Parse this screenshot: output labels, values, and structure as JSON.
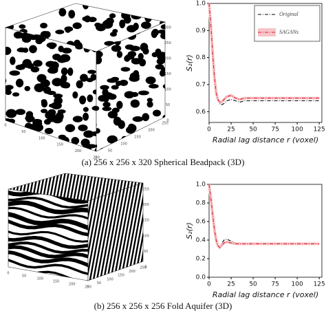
{
  "figures": [
    {
      "caption": "(a) 256 x 256 x 320 Spherical Beadpack (3D)",
      "cube_labels": {
        "vertical": [
          "0",
          "50",
          "100",
          "150",
          "200",
          "250",
          "300"
        ],
        "left": [
          "0",
          "50",
          "100",
          "150",
          "200",
          "250"
        ],
        "right": [
          "0",
          "50",
          "100",
          "150",
          "200",
          "250"
        ]
      }
    },
    {
      "caption": "(b) 256 x 256 x 256 Fold Aquifer (3D)",
      "cube_labels": {
        "vertical": [
          "0",
          "50",
          "100",
          "150",
          "200",
          "250"
        ],
        "left": [
          "0",
          "50",
          "100",
          "150",
          "200",
          "250"
        ],
        "right": [
          "0",
          "50",
          "100",
          "150",
          "200",
          "250"
        ]
      }
    }
  ],
  "chart_data": [
    {
      "type": "line",
      "ylabel": "S₂(r)",
      "xlabel": "Radial lag distance r (voxel)",
      "x": [
        0,
        2,
        4,
        6,
        8,
        10,
        12,
        14,
        17,
        20,
        25,
        30,
        35,
        40,
        50,
        60,
        70,
        80,
        90,
        100,
        110,
        125
      ],
      "series": [
        {
          "name": "Original",
          "color": "#000000",
          "values": [
            1.0,
            0.92,
            0.82,
            0.73,
            0.67,
            0.64,
            0.63,
            0.625,
            0.63,
            0.64,
            0.645,
            0.64,
            0.635,
            0.64,
            0.64,
            0.64,
            0.64,
            0.64,
            0.64,
            0.64,
            0.64,
            0.64
          ]
        },
        {
          "name": "SAGANs",
          "color": "#e0202a",
          "band_color": "#f7c4c8",
          "values": [
            1.0,
            0.92,
            0.82,
            0.73,
            0.67,
            0.645,
            0.635,
            0.635,
            0.645,
            0.655,
            0.66,
            0.65,
            0.645,
            0.65,
            0.65,
            0.65,
            0.65,
            0.65,
            0.65,
            0.65,
            0.65,
            0.65
          ]
        }
      ],
      "xlim": [
        0,
        128
      ],
      "xticks": [
        0,
        25,
        50,
        75,
        100,
        125
      ],
      "ylim": [
        0.56,
        1.0
      ],
      "yticks": [
        {
          "value": 0.6,
          "label": "0.6"
        },
        0.7,
        0.8,
        0.9,
        {
          "value": 1,
          "label": "1.0"
        }
      ],
      "legend": "upper right"
    },
    {
      "type": "line",
      "ylabel": "S₂(r)",
      "xlabel": "Radial lag distance r (voxel)",
      "x": [
        0,
        2,
        4,
        6,
        8,
        10,
        12,
        14,
        17,
        20,
        25,
        30,
        35,
        40,
        50,
        60,
        70,
        80,
        90,
        100,
        110,
        125
      ],
      "series": [
        {
          "color": "#000000",
          "values": [
            1.0,
            0.85,
            0.68,
            0.52,
            0.4,
            0.34,
            0.33,
            0.36,
            0.4,
            0.41,
            0.39,
            0.37,
            0.37,
            0.37,
            0.37,
            0.37,
            null,
            null,
            null,
            null,
            null,
            null
          ]
        },
        {
          "color": "#e0202a",
          "band_color": "#f7c4c8",
          "values": [
            1.0,
            0.85,
            0.68,
            0.52,
            0.4,
            0.34,
            0.32,
            0.34,
            0.37,
            0.38,
            0.37,
            0.36,
            0.36,
            0.36,
            0.36,
            0.36,
            0.36,
            0.36,
            0.36,
            0.36,
            0.36,
            0.36
          ]
        }
      ],
      "xlim": [
        0,
        128
      ],
      "xticks": [
        0,
        25,
        50,
        75,
        100,
        125
      ],
      "ylim": [
        0,
        1.0
      ],
      "yticks": [
        {
          "value": 0,
          "label": "0.0"
        },
        0.2,
        0.4,
        0.6,
        0.8,
        {
          "value": 1,
          "label": "1.0"
        }
      ]
    }
  ]
}
